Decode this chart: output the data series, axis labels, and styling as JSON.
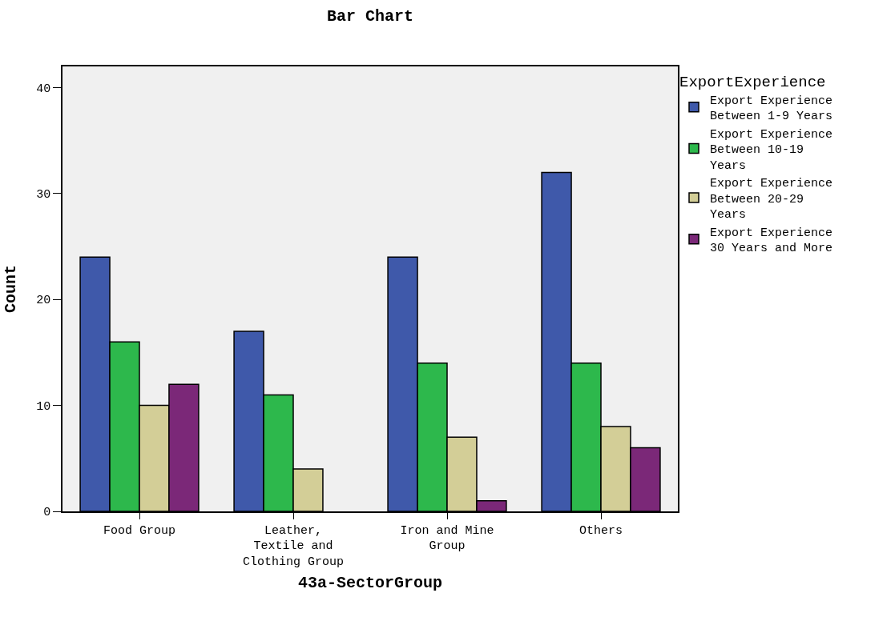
{
  "chart_data": {
    "type": "bar",
    "title": "Bar Chart",
    "xlabel": "43a-SectorGroup",
    "ylabel": "Count",
    "legend_title": "ExportExperience",
    "categories": [
      "Food Group",
      "Leather, Textile and Clothing Group",
      "Iron and Mine Group",
      "Others"
    ],
    "series": [
      {
        "name": "Export Experience Between 1-9 Years",
        "color": "#3f59aa",
        "values": [
          24,
          17,
          24,
          32
        ]
      },
      {
        "name": "Export Experience Between 10-19 Years",
        "color": "#2db84c",
        "values": [
          16,
          11,
          14,
          14
        ]
      },
      {
        "name": "Export Experience Between 20-29 Years",
        "color": "#d3ce97",
        "values": [
          10,
          4,
          7,
          8
        ]
      },
      {
        "name": "Export Experience 30 Years and More",
        "color": "#7b2878",
        "values": [
          12,
          null,
          1,
          6
        ]
      }
    ],
    "ylim": [
      0,
      42
    ],
    "yticks": [
      0,
      10,
      20,
      30,
      40
    ],
    "grid": false,
    "legend": "right"
  }
}
